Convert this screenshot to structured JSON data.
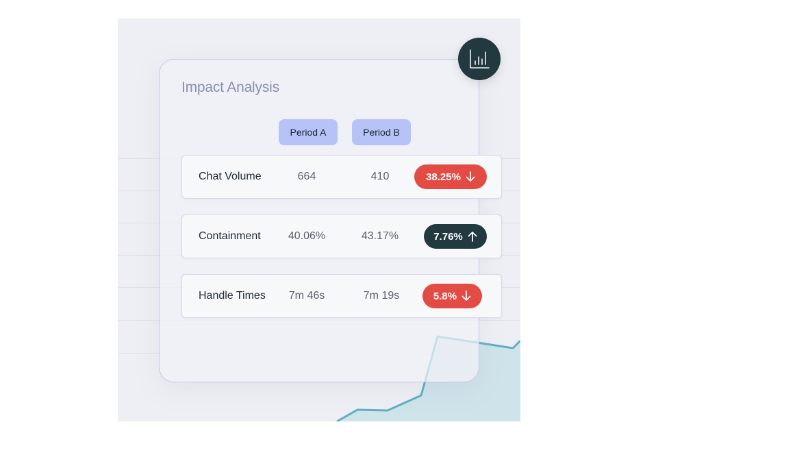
{
  "card": {
    "title": "Impact Analysis",
    "icon": "bar-chart-icon"
  },
  "columns": {
    "period_a": "Period A",
    "period_b": "Period B"
  },
  "metrics": [
    {
      "label": "Chat Volume",
      "period_a": "664",
      "period_b": "410",
      "change": "38.25%",
      "direction": "down"
    },
    {
      "label": "Containment",
      "period_a": "40.06%",
      "period_b": "43.17%",
      "change": "7.76%",
      "direction": "up"
    },
    {
      "label": "Handle Times",
      "period_a": "7m 46s",
      "period_b": "7m 19s",
      "change": "5.8%",
      "direction": "down"
    }
  ],
  "colors": {
    "decrease": "#e34b45",
    "increase": "#22393f",
    "period_pill": "#b7c3f7",
    "trend_line": "#5fb0c4"
  }
}
